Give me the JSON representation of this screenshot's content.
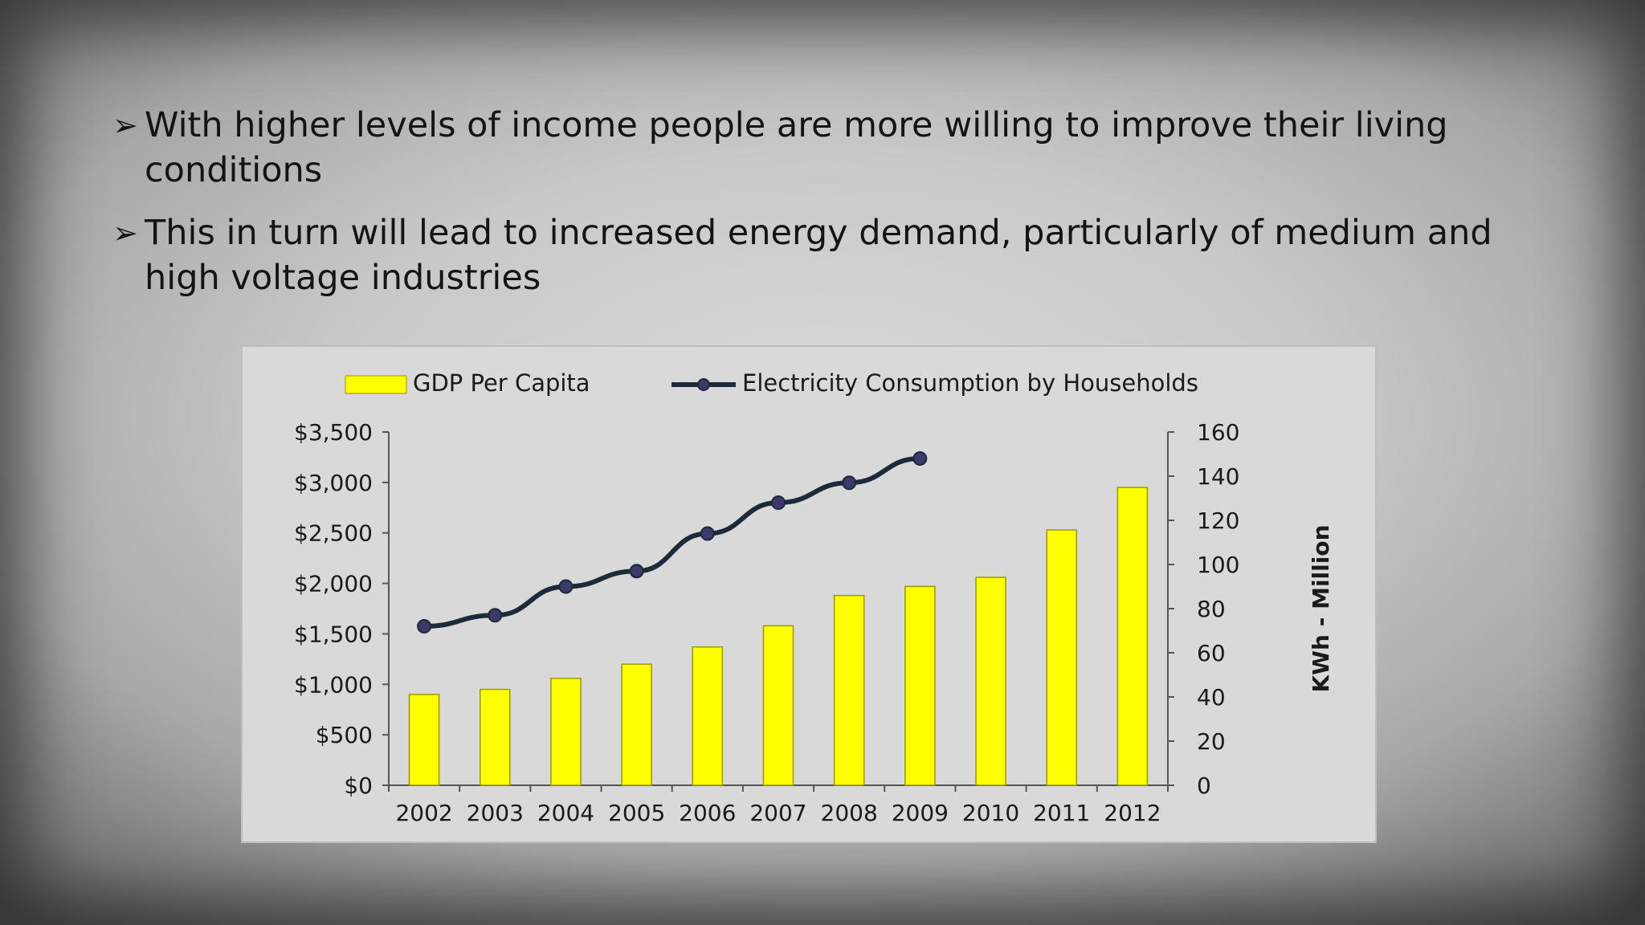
{
  "slide": {
    "bullets": [
      {
        "arrow": "➢",
        "text": "With higher levels of income people are more willing to improve their living conditions"
      },
      {
        "arrow": "➢",
        "text": "This in turn will lead to increased energy demand, particularly of medium and high voltage industries"
      }
    ]
  },
  "colors": {
    "bar_fill": "#ffff00",
    "bar_stroke": "#999900",
    "line": "#1c2a3a",
    "marker": "#3c3a6a"
  },
  "chart_data": {
    "type": "bar",
    "categories": [
      "2002",
      "2003",
      "2004",
      "2005",
      "2006",
      "2007",
      "2008",
      "2009",
      "2010",
      "2011",
      "2012"
    ],
    "series": [
      {
        "name": "GDP Per Capita",
        "type": "bar",
        "axis": "left",
        "values": [
          900,
          950,
          1060,
          1200,
          1370,
          1580,
          1880,
          1970,
          2060,
          2530,
          2950
        ]
      },
      {
        "name": "Electricity Consumption by Households",
        "type": "line",
        "axis": "right",
        "values": [
          72,
          77,
          90,
          97,
          114,
          128,
          137,
          148,
          null,
          null,
          null
        ]
      }
    ],
    "left_axis": {
      "min": 0,
      "max": 3500,
      "step": 500,
      "tick_labels": [
        "$0",
        "$500",
        "$1,000",
        "$1,500",
        "$2,000",
        "$2,500",
        "$3,000",
        "$3,500"
      ]
    },
    "right_axis": {
      "min": 0,
      "max": 160,
      "step": 20,
      "label": "KWh - Million",
      "tick_labels": [
        "0",
        "20",
        "40",
        "60",
        "80",
        "100",
        "120",
        "140",
        "160"
      ]
    },
    "legend": {
      "position": "top"
    },
    "grid": false
  }
}
